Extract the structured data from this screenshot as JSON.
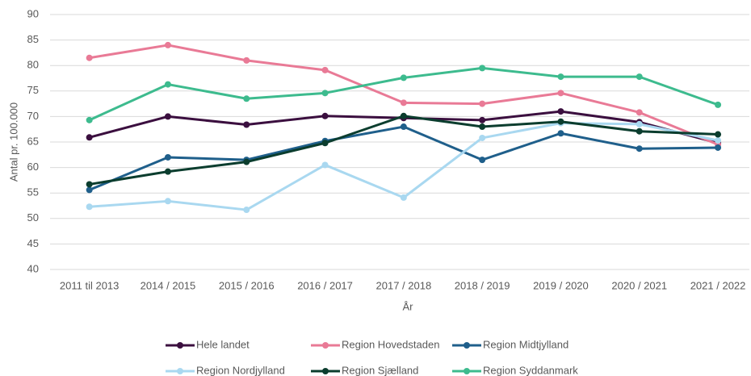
{
  "chart_data": {
    "type": "line",
    "x_label": "År",
    "y_label": "Antal pr. 100.000",
    "categories": [
      "2011 til 2013",
      "2014 / 2015",
      "2015 / 2016",
      "2016 / 2017",
      "2017 / 2018",
      "2018 / 2019",
      "2019 / 2020",
      "2020 / 2021",
      "2021 / 2022"
    ],
    "series": [
      {
        "name": "Hele landet",
        "color": "#3b0f3f",
        "values": [
          65.9,
          70.0,
          68.4,
          70.1,
          69.7,
          69.3,
          71.0,
          68.9,
          64.8
        ]
      },
      {
        "name": "Region Hovedstaden",
        "color": "#e97a96",
        "values": [
          81.5,
          84.0,
          81.0,
          79.1,
          72.7,
          72.5,
          74.6,
          70.8,
          64.5
        ]
      },
      {
        "name": "Region Midtjylland",
        "color": "#1f5f8b",
        "values": [
          55.6,
          62.0,
          61.5,
          65.2,
          68.0,
          61.5,
          66.7,
          63.7,
          63.9
        ]
      },
      {
        "name": "Region Nordjylland",
        "color": "#a9d8f0",
        "values": [
          52.3,
          53.4,
          51.7,
          60.5,
          54.1,
          65.8,
          68.7,
          68.5,
          65.3
        ]
      },
      {
        "name": "Region Sjælland",
        "color": "#0b3d2e",
        "values": [
          56.7,
          59.2,
          61.1,
          64.8,
          70.1,
          68.0,
          69.0,
          67.1,
          66.5
        ]
      },
      {
        "name": "Region Syddanmark",
        "color": "#3dbb8e",
        "values": [
          69.3,
          76.3,
          73.5,
          74.6,
          77.6,
          79.5,
          77.8,
          77.8,
          72.3
        ]
      }
    ],
    "ylim": [
      40,
      90
    ],
    "yticks": [
      40,
      45,
      50,
      55,
      60,
      65,
      70,
      75,
      80,
      85,
      90
    ],
    "grid": true,
    "legend": "bottom"
  }
}
